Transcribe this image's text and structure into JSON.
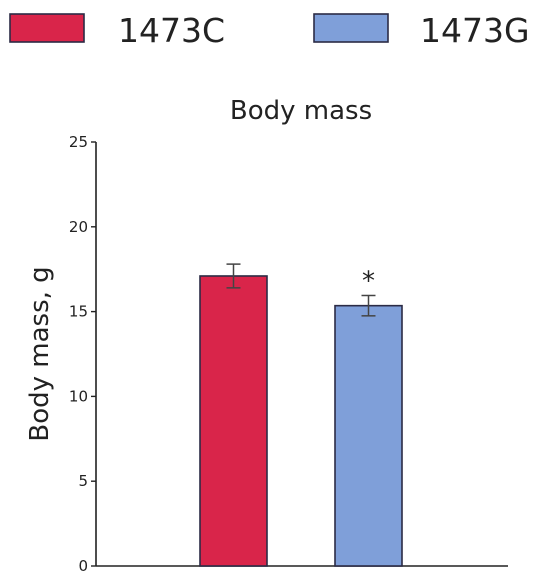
{
  "chart_data": {
    "type": "bar",
    "title": "Body mass",
    "xlabel": "",
    "ylabel": "Body mass, g",
    "ylim": [
      0,
      25
    ],
    "yticks": [
      0,
      5,
      10,
      15,
      20,
      25
    ],
    "grid": false,
    "legend_placement": "top",
    "categories": [
      "1473C",
      "1473G"
    ],
    "series": [
      {
        "name": "1473C",
        "value": 17.1,
        "error": 0.7,
        "color": "#d9254a",
        "significance": ""
      },
      {
        "name": "1473G",
        "value": 15.35,
        "error": 0.6,
        "color": "#7f9fd9",
        "significance": "*"
      }
    ],
    "bar_edge_color": "#2b2b45",
    "error_bar_color": "#444444"
  }
}
